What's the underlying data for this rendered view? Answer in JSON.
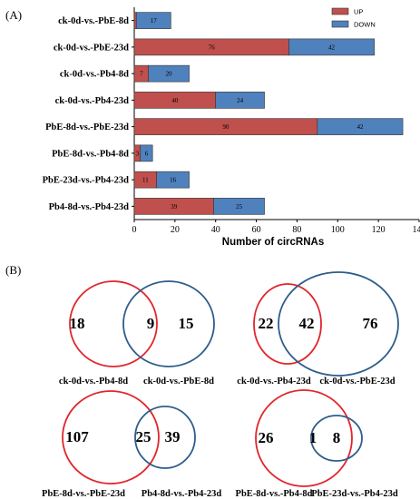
{
  "panel_labels": {
    "a": "(A)",
    "b": "(B)"
  },
  "legend": {
    "up": "UP",
    "down": "DOWN"
  },
  "colors": {
    "up": "#c0504d",
    "down": "#4f81bd",
    "up_circle": "#e0262c",
    "down_circle": "#2e5d8c",
    "border": "#333333"
  },
  "chart_data": {
    "type": "bar",
    "orientation": "horizontal",
    "stacked": true,
    "categories": [
      "ck-0d-vs.-PbE-8d",
      "ck-0d-vs.-PbE-23d",
      "ck-0d-vs.-Pb4-8d",
      "ck-0d-vs.-Pb4-23d",
      "PbE-8d-vs.-PbE-23d",
      "PbE-8d-vs.-Pb4-8d",
      "PbE-23d-vs.-Pb4-23d",
      "Pb4-8d-vs.-Pb4-23d"
    ],
    "series": [
      {
        "name": "UP",
        "values": [
          1,
          76,
          7,
          40,
          90,
          3,
          11,
          39
        ]
      },
      {
        "name": "DOWN",
        "values": [
          17,
          42,
          20,
          24,
          42,
          6,
          16,
          25
        ]
      }
    ],
    "bar_labels": {
      "UP": [
        "",
        "76",
        "7",
        "40",
        "90",
        "3",
        "11",
        "39"
      ],
      "DOWN": [
        "17",
        "42",
        "20",
        "24",
        "42",
        "6",
        "16",
        "25"
      ]
    },
    "xlabel": "Number of circRNAs",
    "xlim": [
      0,
      140
    ],
    "xticks": [
      "0",
      "20",
      "40",
      "60",
      "80",
      "100",
      "120",
      "140"
    ],
    "grid": false,
    "legend_position": "top-right"
  },
  "venn": [
    {
      "left_only": "18",
      "overlap": "9",
      "right_only": "15",
      "left_label": "ck-0d-vs.-Pb4-8d",
      "right_label": "ck-0d-vs.-PbE-8d"
    },
    {
      "left_only": "22",
      "overlap": "42",
      "right_only": "76",
      "left_label": "ck-0d-vs.-Pb4-23d",
      "right_label": "ck-0d-vs.-PbE-23d"
    },
    {
      "left_only": "107",
      "overlap": "25",
      "right_only": "39",
      "left_label": "PbE-8d-vs.-PbE-23d",
      "right_label": "Pb4-8d-vs.-Pb4-23d"
    },
    {
      "left_only": "26",
      "overlap": "1",
      "right_only": "8",
      "left_label": "PbE-8d-vs.-Pb4-8d",
      "right_label": "PbE-23d-vs.-Pb4-23d"
    }
  ]
}
